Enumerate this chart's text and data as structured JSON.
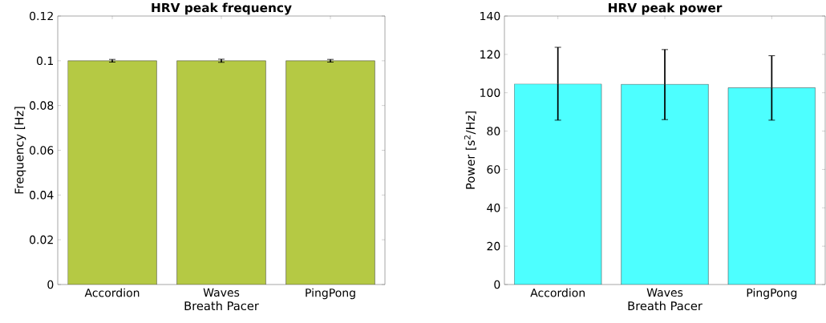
{
  "chart_data": [
    {
      "type": "bar",
      "title": "HRV peak frequency",
      "xlabel": "Breath Pacer",
      "ylabel": "Frequency [Hz]",
      "categories": [
        "Accordion",
        "Waves",
        "PingPong"
      ],
      "values": [
        0.1,
        0.1,
        0.1
      ],
      "errors": [
        0.0006,
        0.0007,
        0.0006
      ],
      "color": "#b5c944",
      "ylim": [
        0,
        0.12
      ],
      "yticks": [
        0,
        0.02,
        0.04,
        0.06,
        0.08,
        0.1,
        0.12
      ]
    },
    {
      "type": "bar",
      "title": "HRV peak power",
      "xlabel": "Breath Pacer",
      "ylabel": "Power [s$^{2}$/Hz]",
      "categories": [
        "Accordion",
        "Waves",
        "PingPong"
      ],
      "values": [
        104.6,
        104.4,
        102.6
      ],
      "errors": [
        [
          85.7,
          123.7
        ],
        [
          86.0,
          122.5
        ],
        [
          85.7,
          119.3
        ]
      ],
      "color": "#4dffff",
      "ylim": [
        0,
        140
      ],
      "yticks": [
        0,
        20,
        40,
        60,
        80,
        100,
        120,
        140
      ]
    }
  ]
}
